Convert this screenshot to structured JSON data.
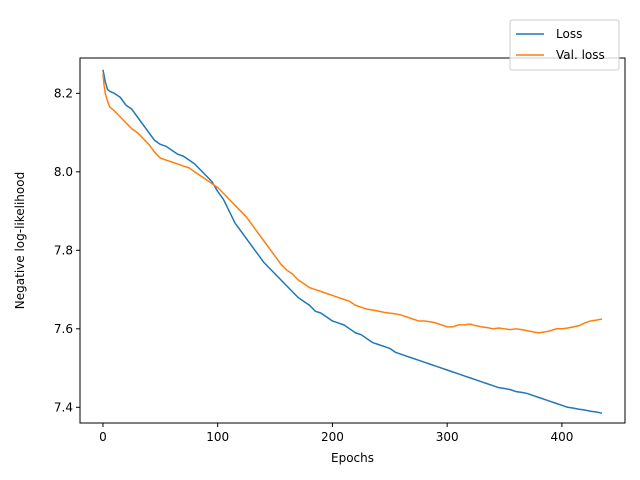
{
  "chart_data": {
    "type": "line",
    "title": "",
    "xlabel": "Epochs",
    "ylabel": "Negative log-likelihood",
    "xlim": [
      -20,
      455
    ],
    "ylim": [
      7.36,
      8.29
    ],
    "xticks": [
      0,
      100,
      200,
      300,
      400
    ],
    "yticks": [
      7.4,
      7.6,
      7.8,
      8.0,
      8.2
    ],
    "xtick_labels": [
      "0",
      "100",
      "200",
      "300",
      "400"
    ],
    "ytick_labels": [
      "7.4",
      "7.6",
      "7.8",
      "8.0",
      "8.2"
    ],
    "grid": false,
    "legend_position": "top-right",
    "colors": {
      "loss": "#1f77b4",
      "val_loss": "#ff7f0e"
    },
    "series": [
      {
        "name": "Loss",
        "color": "#1f77b4",
        "x": [
          0,
          2,
          4,
          6,
          10,
          15,
          20,
          25,
          30,
          35,
          40,
          45,
          50,
          55,
          60,
          65,
          70,
          75,
          80,
          85,
          90,
          95,
          100,
          105,
          110,
          115,
          120,
          125,
          130,
          135,
          140,
          145,
          150,
          155,
          160,
          165,
          170,
          175,
          180,
          185,
          190,
          195,
          200,
          205,
          210,
          215,
          220,
          225,
          230,
          235,
          240,
          245,
          250,
          255,
          260,
          265,
          270,
          275,
          280,
          285,
          290,
          295,
          300,
          305,
          310,
          315,
          320,
          325,
          330,
          335,
          340,
          345,
          350,
          355,
          360,
          365,
          370,
          375,
          380,
          385,
          390,
          395,
          400,
          405,
          410,
          415,
          420,
          425,
          430,
          435
        ],
        "values": [
          8.26,
          8.23,
          8.21,
          8.205,
          8.2,
          8.19,
          8.17,
          8.16,
          8.14,
          8.12,
          8.1,
          8.08,
          8.07,
          8.065,
          8.055,
          8.045,
          8.04,
          8.03,
          8.02,
          8.005,
          7.99,
          7.975,
          7.95,
          7.93,
          7.9,
          7.87,
          7.85,
          7.83,
          7.81,
          7.79,
          7.77,
          7.755,
          7.74,
          7.725,
          7.71,
          7.695,
          7.68,
          7.67,
          7.66,
          7.645,
          7.64,
          7.63,
          7.62,
          7.615,
          7.61,
          7.6,
          7.59,
          7.585,
          7.575,
          7.565,
          7.56,
          7.555,
          7.55,
          7.54,
          7.535,
          7.53,
          7.525,
          7.52,
          7.515,
          7.51,
          7.505,
          7.5,
          7.495,
          7.49,
          7.485,
          7.48,
          7.475,
          7.47,
          7.465,
          7.46,
          7.455,
          7.45,
          7.448,
          7.445,
          7.44,
          7.438,
          7.435,
          7.43,
          7.425,
          7.42,
          7.415,
          7.41,
          7.405,
          7.4,
          7.398,
          7.395,
          7.393,
          7.39,
          7.388,
          7.385
        ]
      },
      {
        "name": "Val. loss",
        "color": "#ff7f0e",
        "x": [
          0,
          1,
          2,
          4,
          6,
          10,
          15,
          20,
          25,
          30,
          35,
          40,
          45,
          50,
          55,
          60,
          65,
          70,
          75,
          80,
          85,
          90,
          95,
          100,
          105,
          110,
          115,
          120,
          125,
          130,
          135,
          140,
          145,
          150,
          155,
          160,
          165,
          170,
          175,
          180,
          185,
          190,
          195,
          200,
          205,
          210,
          215,
          220,
          225,
          230,
          235,
          240,
          245,
          250,
          255,
          260,
          265,
          270,
          275,
          280,
          285,
          290,
          295,
          300,
          305,
          310,
          315,
          320,
          325,
          330,
          335,
          340,
          345,
          350,
          355,
          360,
          365,
          370,
          375,
          380,
          385,
          390,
          395,
          400,
          405,
          410,
          415,
          420,
          425,
          430,
          435
        ],
        "values": [
          8.25,
          8.22,
          8.2,
          8.18,
          8.165,
          8.155,
          8.14,
          8.125,
          8.11,
          8.1,
          8.085,
          8.07,
          8.05,
          8.035,
          8.03,
          8.025,
          8.02,
          8.015,
          8.01,
          8.0,
          7.99,
          7.98,
          7.97,
          7.96,
          7.945,
          7.93,
          7.915,
          7.9,
          7.885,
          7.865,
          7.845,
          7.825,
          7.805,
          7.785,
          7.765,
          7.75,
          7.74,
          7.725,
          7.715,
          7.705,
          7.7,
          7.695,
          7.69,
          7.685,
          7.68,
          7.675,
          7.67,
          7.66,
          7.655,
          7.65,
          7.648,
          7.645,
          7.642,
          7.64,
          7.638,
          7.635,
          7.63,
          7.625,
          7.62,
          7.62,
          7.618,
          7.615,
          7.61,
          7.605,
          7.605,
          7.61,
          7.61,
          7.612,
          7.608,
          7.605,
          7.603,
          7.6,
          7.602,
          7.6,
          7.598,
          7.6,
          7.598,
          7.595,
          7.592,
          7.59,
          7.592,
          7.595,
          7.6,
          7.6,
          7.602,
          7.605,
          7.608,
          7.615,
          7.62,
          7.622,
          7.625
        ]
      }
    ]
  }
}
